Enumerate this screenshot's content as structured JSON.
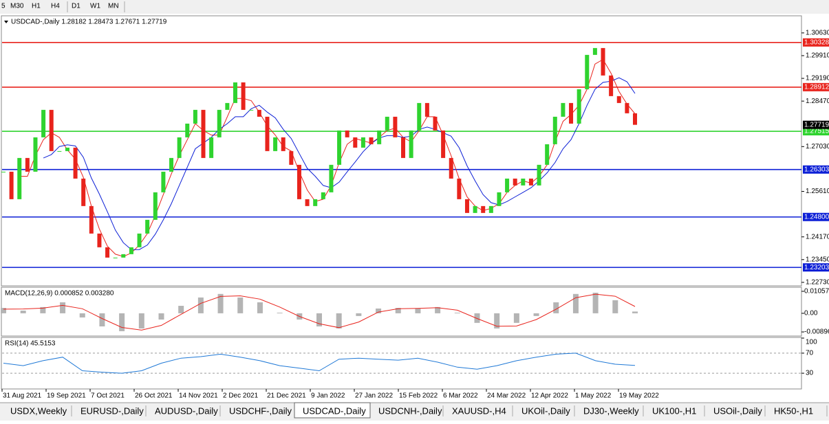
{
  "toolbar": {
    "buttons": [
      "5",
      "M30",
      "H1",
      "H4",
      "D1",
      "W1",
      "MN"
    ]
  },
  "chart": {
    "header": "USDCAD-,Daily  1.28182 1.28473 1.27671 1.27719",
    "closes": [
      1.26234,
      1.25363,
      1.26669,
      1.26234,
      1.27322,
      1.28193,
      1.26887,
      1.26887,
      1.26996,
      1.26016,
      1.25146,
      1.24275,
      1.2384,
      1.23514,
      1.23514,
      1.23622,
      1.2384,
      1.24275,
      1.2471,
      1.25581,
      1.26234,
      1.26669,
      1.27322,
      1.27757,
      1.28193,
      1.26669,
      1.27322,
      1.28193,
      1.2841,
      1.29063,
      1.28193,
      1.28193,
      1.27975,
      1.26887,
      1.27322,
      1.26887,
      1.26452,
      1.25363,
      1.25146,
      1.25363,
      1.25581,
      1.26452,
      1.2754,
      1.27322,
      1.26996,
      1.27322,
      1.27104,
      1.2754,
      1.27975,
      1.27322,
      1.26669,
      1.2754,
      1.2841,
      1.27975,
      1.2754,
      1.26669,
      1.26016,
      1.25363,
      1.24928,
      1.25146,
      1.24928,
      1.25146,
      1.25581,
      1.26016,
      1.25799,
      1.26016,
      1.25799,
      1.26452,
      1.27104,
      1.27975,
      1.2841,
      1.27757,
      1.28845,
      1.29934,
      1.30151,
      1.29281,
      1.28628,
      1.2841,
      1.28084,
      1.27719
    ],
    "up_color": "#2fd32f",
    "down_color": "#e8231c",
    "ylim": [
      1.2264,
      1.3115
    ],
    "yticks": [
      {
        "value": 1.3063,
        "label": "1.30630"
      },
      {
        "value": 1.2991,
        "label": "1.29910"
      },
      {
        "value": 1.2919,
        "label": "1.29190"
      },
      {
        "value": 1.2847,
        "label": "1.28470"
      },
      {
        "value": 1.2703,
        "label": "1.27030"
      },
      {
        "value": 1.2561,
        "label": "1.25610"
      },
      {
        "value": 1.2417,
        "label": "1.24170"
      },
      {
        "value": 1.2345,
        "label": "1.23450"
      },
      {
        "value": 1.2273,
        "label": "1.22730"
      }
    ],
    "levels": [
      {
        "value": 1.30328,
        "label": "1.30328",
        "color": "#e8231c"
      },
      {
        "value": 1.28912,
        "label": "1.28912",
        "color": "#e8231c"
      },
      {
        "value": 1.27515,
        "label": "1.27515",
        "color": "#2fd32f"
      },
      {
        "value": 1.26303,
        "label": "1.26303",
        "color": "#0c1fd6"
      },
      {
        "value": 1.248,
        "label": "1.24800",
        "color": "#0c1fd6"
      },
      {
        "value": 1.23203,
        "label": "1.23203",
        "color": "#0c1fd6"
      }
    ],
    "last_price": 1.27719,
    "dates": [
      "31 Aug 2021",
      "19 Sep 2021",
      "7 Oct 2021",
      "26 Oct 2021",
      "14 Nov 2021",
      "2 Dec 2021",
      "21 Dec 2021",
      "9 Jan 2022",
      "27 Jan 2022",
      "15 Feb 2022",
      "6 Mar 2022",
      "24 Mar 2022",
      "12 Apr 2022",
      "1 May 2022",
      "19 May 2022"
    ]
  },
  "macd": {
    "label": "MACD(12,26,9) 0.000852 0.003280",
    "histogram": [
      0.0026,
      0.0013,
      0.003,
      0.0053,
      -0.002,
      -0.0063,
      -0.0086,
      -0.0073,
      -0.003,
      0.0036,
      0.0076,
      0.0093,
      0.0076,
      0.0053,
      0.0003,
      -0.003,
      -0.0063,
      -0.0073,
      -0.0013,
      0.0023,
      0.0026,
      0.0023,
      0.003,
      0.0003,
      -0.0046,
      -0.0073,
      -0.0046,
      -0.0013,
      0.0053,
      0.0093,
      0.0099,
      0.0063,
      0.000852
    ],
    "signal": [
      0.002,
      0.0021,
      0.0025,
      0.0038,
      0.0022,
      -0.0025,
      -0.0068,
      -0.0081,
      -0.0058,
      -0.0005,
      0.0048,
      0.0081,
      0.0084,
      0.0068,
      0.003,
      -0.0015,
      -0.005,
      -0.0069,
      -0.0042,
      0.0006,
      0.0022,
      0.0024,
      0.0027,
      0.0015,
      -0.0025,
      -0.0062,
      -0.0061,
      -0.003,
      0.002,
      0.0075,
      0.0092,
      0.0082,
      0.00328
    ],
    "ylim": [
      -0.0106,
      0.0122
    ],
    "yticks": [
      0.010578,
      {
        "value": 0,
        "label": "0.00"
      },
      -0.00896
    ]
  },
  "rsi": {
    "label": "RSI(14) 45.5153",
    "values": [
      50,
      45,
      55,
      62,
      35,
      32,
      30,
      35,
      50,
      60,
      63,
      68,
      62,
      55,
      45,
      40,
      35,
      58,
      60,
      58,
      56,
      60,
      52,
      42,
      38,
      45,
      55,
      62,
      68,
      70,
      55,
      48,
      45.5153
    ],
    "ylim": [
      0,
      100
    ],
    "yticks": [
      100,
      70,
      30
    ]
  },
  "tabs": [
    "USDX,Weekly",
    "EURUSD-,Daily",
    "AUDUSD-,Daily",
    "USDCHF-,Daily",
    "USDCAD-,Daily",
    "USDCNH-,Daily",
    "XAUUSD-,H4",
    "UKOil-,Daily",
    "DJ30-,Weekly",
    "UK100-,H1",
    "USOil-,Daily",
    "HK50-,H1"
  ],
  "active_tab": 4
}
